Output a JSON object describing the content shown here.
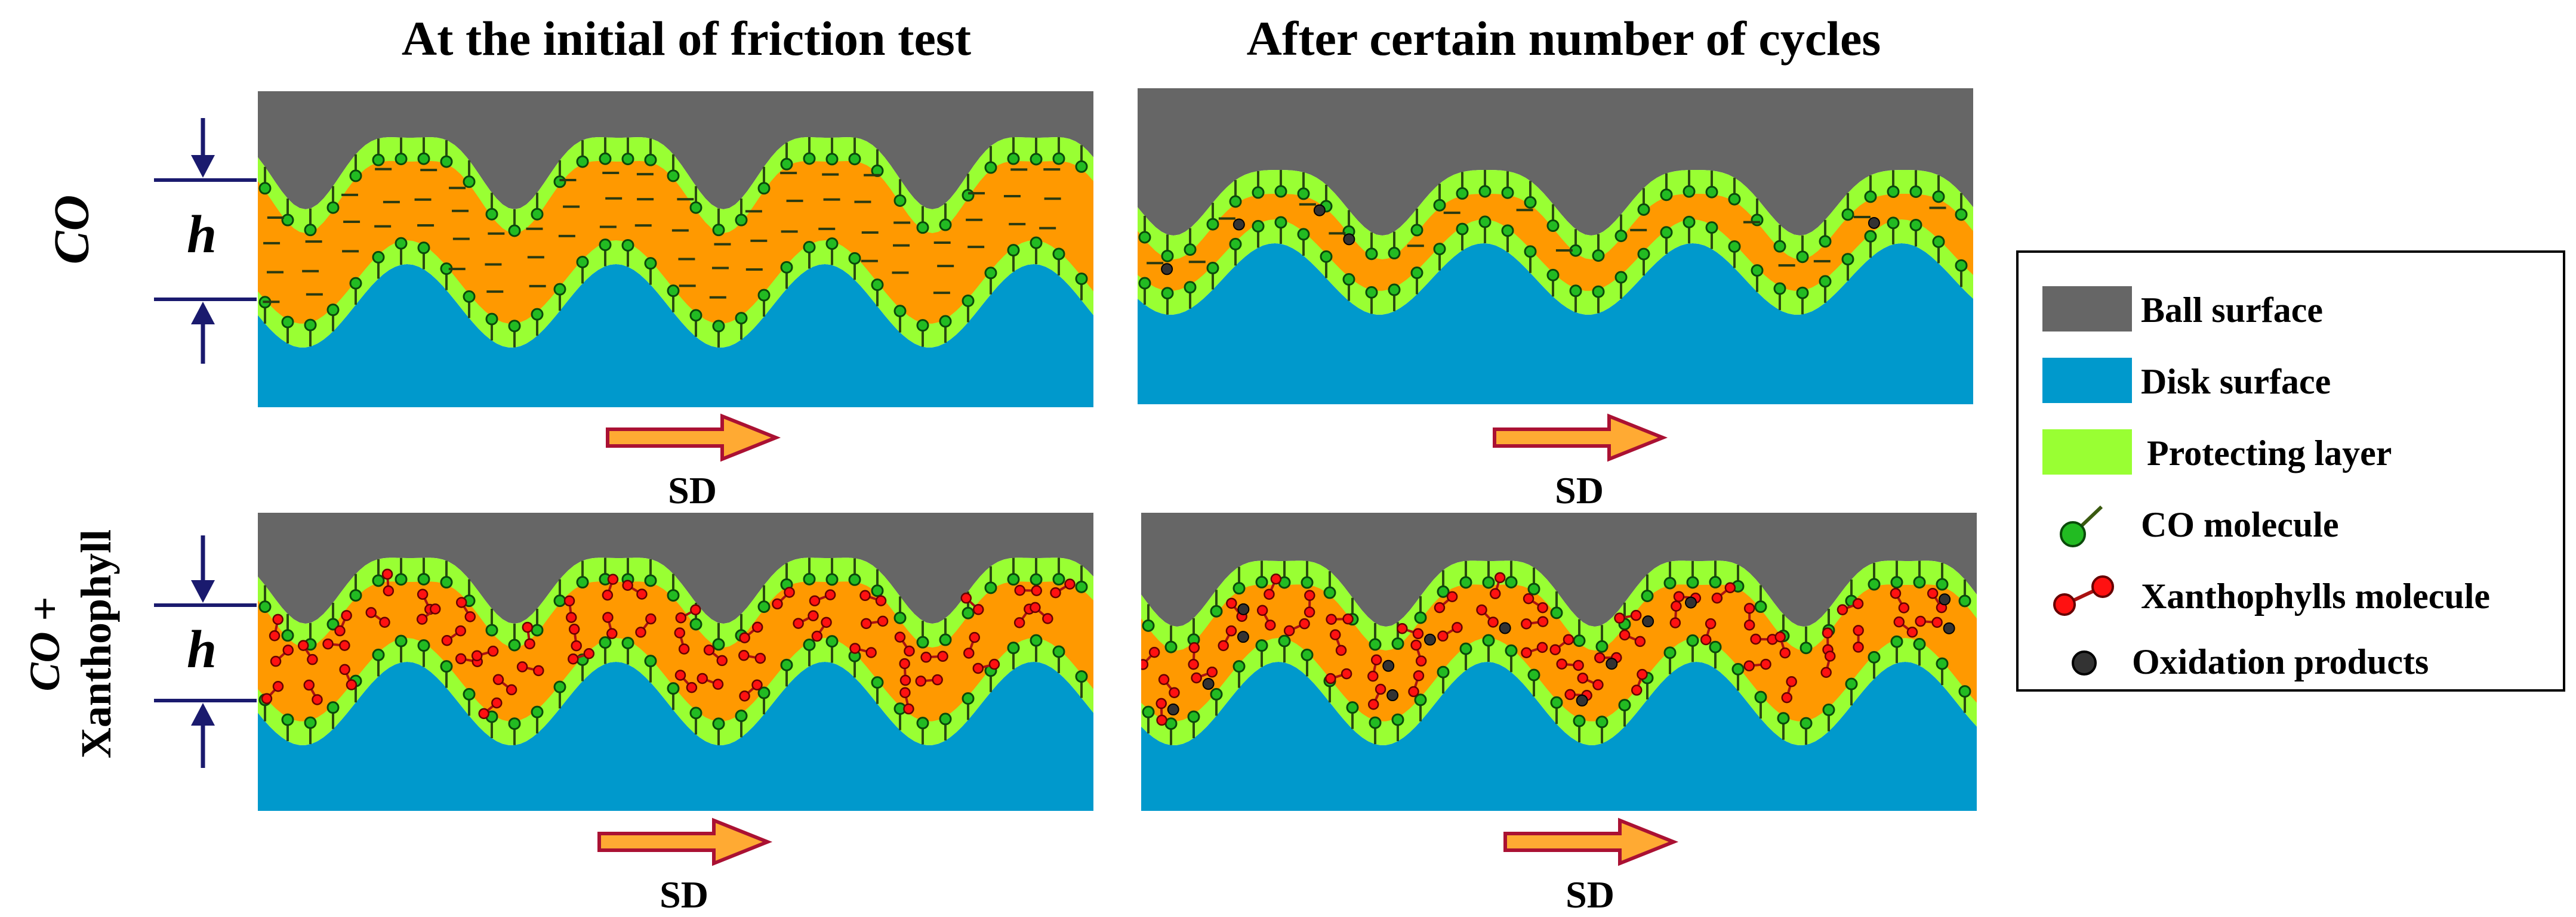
{
  "titles": {
    "left": "At the initial of friction test",
    "right": "After certain number of cycles"
  },
  "row_labels": {
    "top": "CO",
    "bottom_line1": "CO",
    "bottom_plus": " +",
    "bottom_line2": "Xanthophyll"
  },
  "gap_symbol": "h",
  "direction_label": "SD",
  "legend": {
    "items": [
      {
        "label": "Ball surface",
        "color": "#666666"
      },
      {
        "label": "Disk surface",
        "color": "#0099cc"
      },
      {
        "label": "Protecting layer",
        "color": "#99ff33"
      },
      {
        "label": "CO molecule",
        "color": "#22bb22"
      },
      {
        "label": "Xanthophylls molecule",
        "color": "#ff1111"
      },
      {
        "label": "Oxidation products",
        "color": "#333333"
      }
    ]
  },
  "colors": {
    "ball": "#666666",
    "disk": "#0099cc",
    "layer": "#99ff33",
    "lubricant": "#ff9900",
    "co_molecule": "#22bb22",
    "xanthophyll": "#ff1111",
    "oxidation": "#333333",
    "arrow_fill": "#ffaa33",
    "arrow_stroke": "#aa1133",
    "marker": "#1a1a6e"
  }
}
